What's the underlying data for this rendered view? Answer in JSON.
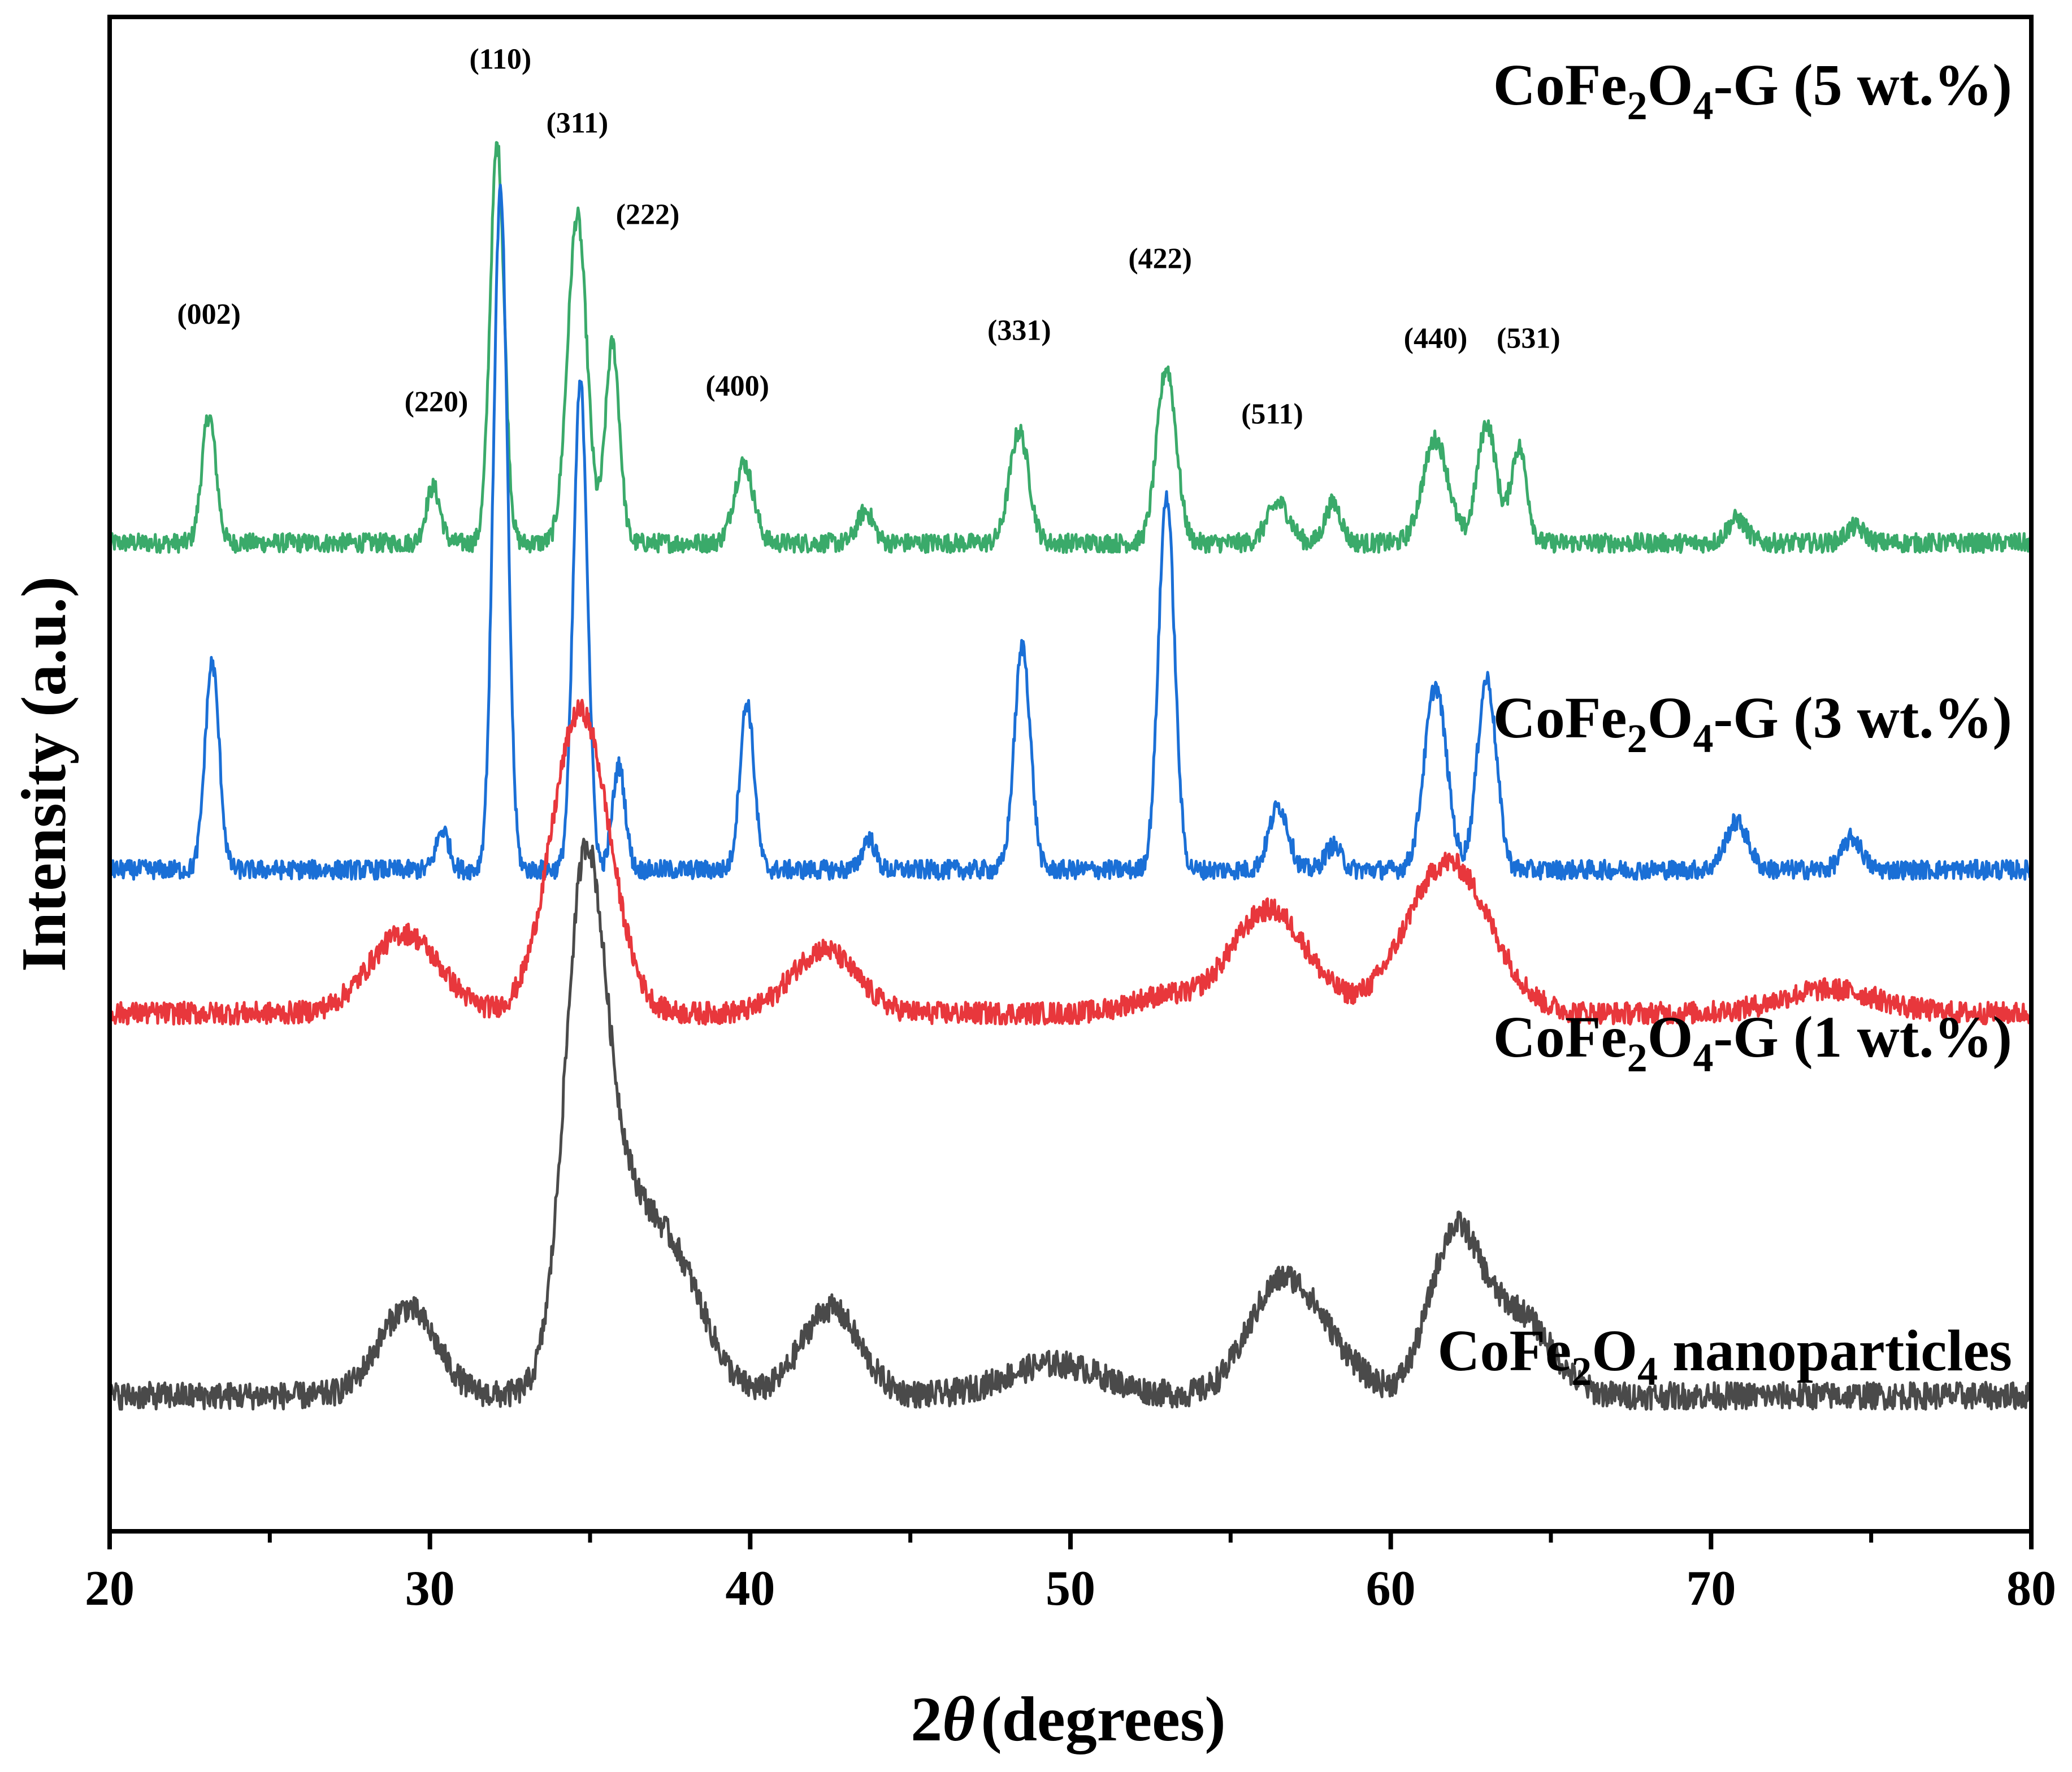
{
  "chart_data": {
    "type": "line",
    "xlabel": "2θ (degrees)",
    "xlabel_parts": {
      "symbol": "2",
      "theta": "θ",
      "rest": "(degrees)"
    },
    "ylabel": "Intensity (a.u.)",
    "xlim": [
      20,
      80
    ],
    "x_ticks": [
      "20",
      "30",
      "40",
      "50",
      "60",
      "70",
      "80"
    ],
    "y_ticks_shown": false,
    "grid": false,
    "series": [
      {
        "name": "CoFe2O4-G (5 wt.%)",
        "label_parts": [
          "CoFe",
          "2",
          "O",
          "4",
          "-G (5 wt.%)"
        ],
        "color": "#3aaa6a",
        "baseline": 6.4,
        "noise": 0.12,
        "peaks": [
          {
            "x": 23.1,
            "h": 1.6,
            "w": 0.22
          },
          {
            "x": 30.1,
            "h": 0.7,
            "w": 0.22
          },
          {
            "x": 32.1,
            "h": 5.0,
            "w": 0.22
          },
          {
            "x": 34.6,
            "h": 4.1,
            "w": 0.3
          },
          {
            "x": 35.7,
            "h": 2.5,
            "w": 0.22
          },
          {
            "x": 39.8,
            "h": 1.0,
            "w": 0.3
          },
          {
            "x": 43.6,
            "h": 0.4,
            "w": 0.25
          },
          {
            "x": 48.4,
            "h": 1.4,
            "w": 0.3
          },
          {
            "x": 53.0,
            "h": 2.2,
            "w": 0.3
          },
          {
            "x": 56.5,
            "h": 0.5,
            "w": 0.35
          },
          {
            "x": 58.2,
            "h": 0.5,
            "w": 0.25
          },
          {
            "x": 61.4,
            "h": 1.3,
            "w": 0.4
          },
          {
            "x": 63.0,
            "h": 1.5,
            "w": 0.3
          },
          {
            "x": 64.0,
            "h": 1.2,
            "w": 0.25
          },
          {
            "x": 70.8,
            "h": 0.3,
            "w": 0.3
          },
          {
            "x": 74.5,
            "h": 0.2,
            "w": 0.3
          }
        ]
      },
      {
        "name": "CoFe2O4-G (3 wt.%)",
        "label_parts": [
          "CoFe",
          "2",
          "O",
          "4",
          "-G (3 wt.%)"
        ],
        "color": "#1a6fd6",
        "baseline": 2.3,
        "noise": 0.12,
        "peaks": [
          {
            "x": 23.2,
            "h": 2.6,
            "w": 0.22
          },
          {
            "x": 30.4,
            "h": 0.5,
            "w": 0.2
          },
          {
            "x": 32.2,
            "h": 8.5,
            "w": 0.22
          },
          {
            "x": 34.7,
            "h": 6.1,
            "w": 0.22
          },
          {
            "x": 35.9,
            "h": 1.3,
            "w": 0.2
          },
          {
            "x": 39.9,
            "h": 2.1,
            "w": 0.22
          },
          {
            "x": 43.7,
            "h": 0.4,
            "w": 0.2
          },
          {
            "x": 48.5,
            "h": 2.8,
            "w": 0.25
          },
          {
            "x": 53.0,
            "h": 4.7,
            "w": 0.25
          },
          {
            "x": 56.5,
            "h": 0.8,
            "w": 0.3
          },
          {
            "x": 58.2,
            "h": 0.3,
            "w": 0.25
          },
          {
            "x": 61.4,
            "h": 2.3,
            "w": 0.35
          },
          {
            "x": 63.0,
            "h": 2.4,
            "w": 0.3
          },
          {
            "x": 70.8,
            "h": 0.6,
            "w": 0.35
          },
          {
            "x": 74.4,
            "h": 0.4,
            "w": 0.3
          }
        ]
      },
      {
        "name": "CoFe2O4-G (1 wt.%)",
        "label_parts": [
          "CoFe",
          "2",
          "O",
          "4",
          "-G (1 wt.%)"
        ],
        "color": "#e8373c",
        "baseline": 0.5,
        "noise": 0.14,
        "peaks": [
          {
            "x": 29.2,
            "h": 1.0,
            "w": 1.1
          },
          {
            "x": 34.7,
            "h": 3.8,
            "w": 0.9
          },
          {
            "x": 42.3,
            "h": 0.8,
            "w": 1.0
          },
          {
            "x": 52.8,
            "h": 0.2,
            "w": 1.0
          },
          {
            "x": 56.2,
            "h": 1.3,
            "w": 1.2
          },
          {
            "x": 61.8,
            "h": 1.9,
            "w": 1.3
          },
          {
            "x": 73.7,
            "h": 0.3,
            "w": 1.5
          }
        ]
      },
      {
        "name": "CoFe2O4 nanoparticles",
        "label_parts": [
          "CoFe",
          "2",
          "O",
          "4",
          " nanoparticles"
        ],
        "color": "#4a4a4a",
        "baseline": -4.3,
        "noise": 0.17,
        "peaks": [
          {
            "x": 29.3,
            "h": 1.1,
            "w": 0.9
          },
          {
            "x": 34.8,
            "h": 5.0,
            "w": 0.6
          },
          {
            "x": 35.6,
            "h": 2.5,
            "w": 1.0
          },
          {
            "x": 37.6,
            "h": 1.6,
            "w": 1.0
          },
          {
            "x": 42.5,
            "h": 1.1,
            "w": 0.9
          },
          {
            "x": 49.5,
            "h": 0.4,
            "w": 1.5
          },
          {
            "x": 56.5,
            "h": 1.3,
            "w": 1.0
          },
          {
            "x": 58.0,
            "h": 0.5,
            "w": 1.0
          },
          {
            "x": 62.0,
            "h": 2.0,
            "w": 0.8
          },
          {
            "x": 64.0,
            "h": 1.0,
            "w": 1.0
          }
        ]
      }
    ],
    "annotations": [
      {
        "text": "(002)",
        "x": 23.1,
        "y": 9.15
      },
      {
        "text": "(220)",
        "x": 30.2,
        "y": 8.05
      },
      {
        "text": "(110)",
        "x": 32.2,
        "y": 12.35
      },
      {
        "text": "(311)",
        "x": 34.6,
        "y": 11.55
      },
      {
        "text": "(222)",
        "x": 36.8,
        "y": 10.4
      },
      {
        "text": "(400)",
        "x": 39.6,
        "y": 8.25
      },
      {
        "text": "(331)",
        "x": 48.4,
        "y": 8.95
      },
      {
        "text": "(422)",
        "x": 52.8,
        "y": 9.85
      },
      {
        "text": "(511)",
        "x": 56.3,
        "y": 7.9
      },
      {
        "text": "(440)",
        "x": 61.4,
        "y": 8.85
      },
      {
        "text": "(531)",
        "x": 64.3,
        "y": 8.85
      }
    ]
  }
}
